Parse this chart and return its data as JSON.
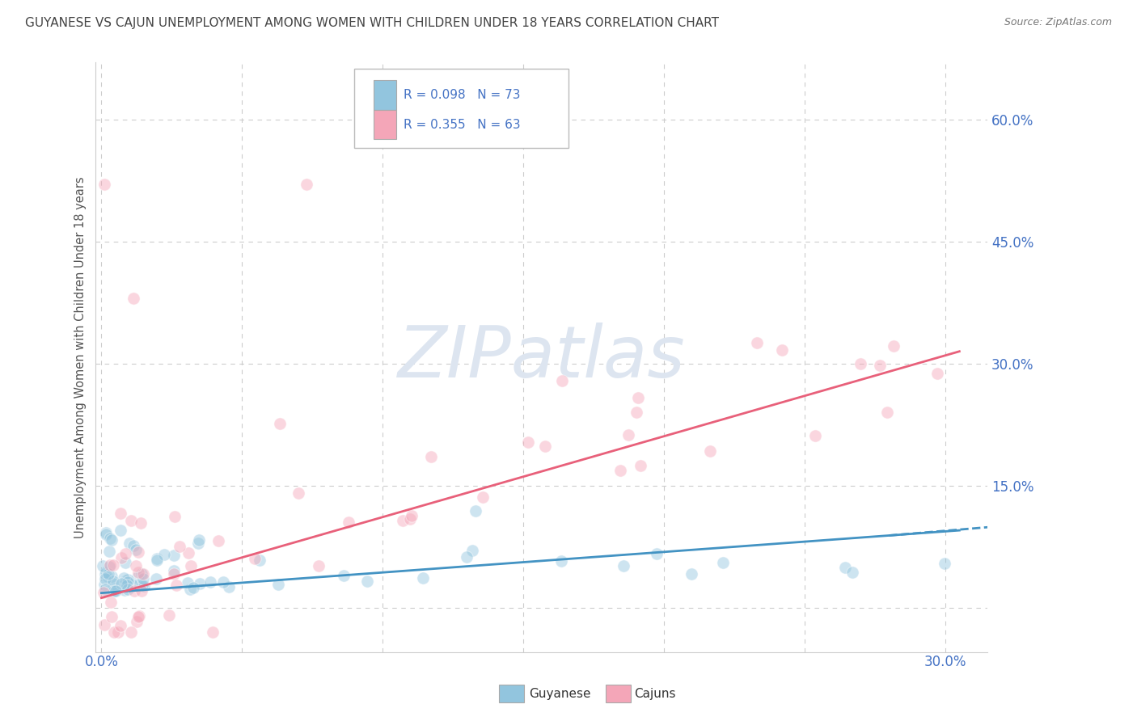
{
  "title": "GUYANESE VS CAJUN UNEMPLOYMENT AMONG WOMEN WITH CHILDREN UNDER 18 YEARS CORRELATION CHART",
  "source": "Source: ZipAtlas.com",
  "ylabel": "Unemployment Among Women with Children Under 18 years",
  "guyanese_color": "#92c5de",
  "cajun_color": "#f4a6b8",
  "guyanese_line_color": "#4393c3",
  "cajun_line_color": "#e8607a",
  "title_color": "#444444",
  "tick_label_color": "#4472c4",
  "background_color": "#ffffff",
  "grid_color": "#cccccc",
  "watermark_color": "#dde5f0",
  "legend_R_color": "#4472c4",
  "legend_N_color": "#e06090",
  "xlim": [
    -0.002,
    0.315
  ],
  "ylim": [
    -0.055,
    0.67
  ],
  "yticks": [
    0.0,
    0.15,
    0.3,
    0.45,
    0.6
  ],
  "ytick_labels": [
    "",
    "15.0%",
    "30.0%",
    "45.0%",
    "60.0%"
  ],
  "guyanese_trend": [
    0.018,
    0.095
  ],
  "cajun_trend": [
    0.012,
    0.315
  ],
  "marker_size": 120,
  "marker_alpha": 0.45
}
